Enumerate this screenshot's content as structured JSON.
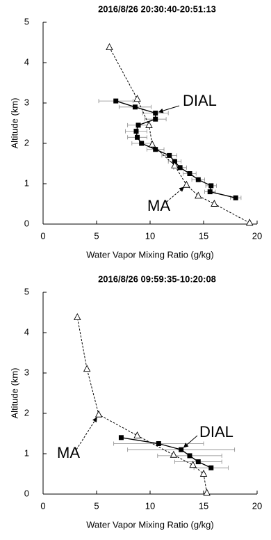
{
  "chart_data": [
    {
      "type": "line",
      "title": "2016/8/26   20:30:40-20:51:13",
      "xlabel": "Water Vapor Mixing Ratio (g/kg)",
      "ylabel": "Altitude (km)",
      "xlim": [
        0,
        20
      ],
      "xticks": [
        0,
        5,
        10,
        15,
        20
      ],
      "ylim": [
        0,
        5
      ],
      "yticks": [
        0,
        1,
        2,
        3,
        4,
        5
      ],
      "grid": false,
      "series": [
        {
          "name": "DIAL",
          "color": "#000000",
          "marker": "square",
          "dashed": false,
          "x": [
            6.8,
            8.6,
            10.5,
            10.5,
            8.9,
            8.7,
            8.8,
            9.2,
            10.5,
            11.8,
            12.3,
            12.8,
            13.7,
            14.5,
            15.7,
            15.6,
            18.0
          ],
          "values": [
            3.05,
            2.9,
            2.75,
            2.6,
            2.45,
            2.3,
            2.15,
            2.0,
            1.85,
            1.7,
            1.55,
            1.4,
            1.25,
            1.1,
            0.95,
            0.8,
            0.65
          ],
          "xerr": [
            1.6,
            1.5,
            1.2,
            1.0,
            1.0,
            1.0,
            0.9,
            0.9,
            0.8,
            0.7,
            0.6,
            0.6,
            0.6,
            0.6,
            0.5,
            0.5,
            0.5
          ]
        },
        {
          "name": "MA",
          "color": "#000000",
          "marker": "triangle",
          "dashed": true,
          "x": [
            19.3,
            16.0,
            14.5,
            13.4,
            12.3,
            10.2,
            9.9,
            8.8,
            6.2
          ],
          "values": [
            0.03,
            0.5,
            0.7,
            0.97,
            1.45,
            1.97,
            2.45,
            3.1,
            4.38
          ]
        }
      ]
    },
    {
      "type": "line",
      "title": "2016/8/26   09:59:35-10:20:08",
      "xlabel": "Water Vapor Mixing Ratio (g/kg)",
      "ylabel": "Altitude (km)",
      "xlim": [
        0,
        20
      ],
      "xticks": [
        0,
        5,
        10,
        15,
        20
      ],
      "ylim": [
        0,
        5
      ],
      "yticks": [
        0,
        1,
        2,
        3,
        4,
        5
      ],
      "grid": false,
      "series": [
        {
          "name": "DIAL",
          "color": "#000000",
          "marker": "square",
          "dashed": false,
          "x": [
            7.3,
            10.8,
            12.9,
            13.7,
            14.5,
            15.7
          ],
          "values": [
            1.4,
            1.25,
            1.1,
            0.95,
            0.8,
            0.65
          ],
          "xerr": [
            0,
            4.2,
            5.0,
            3.0,
            2.2,
            1.6
          ]
        },
        {
          "name": "MA",
          "color": "#000000",
          "marker": "triangle",
          "dashed": true,
          "x": [
            15.3,
            15.0,
            14.0,
            12.2,
            8.8,
            5.2,
            4.1,
            3.2
          ],
          "values": [
            0.03,
            0.5,
            0.72,
            0.97,
            1.45,
            1.97,
            3.1,
            4.38
          ]
        }
      ]
    }
  ]
}
